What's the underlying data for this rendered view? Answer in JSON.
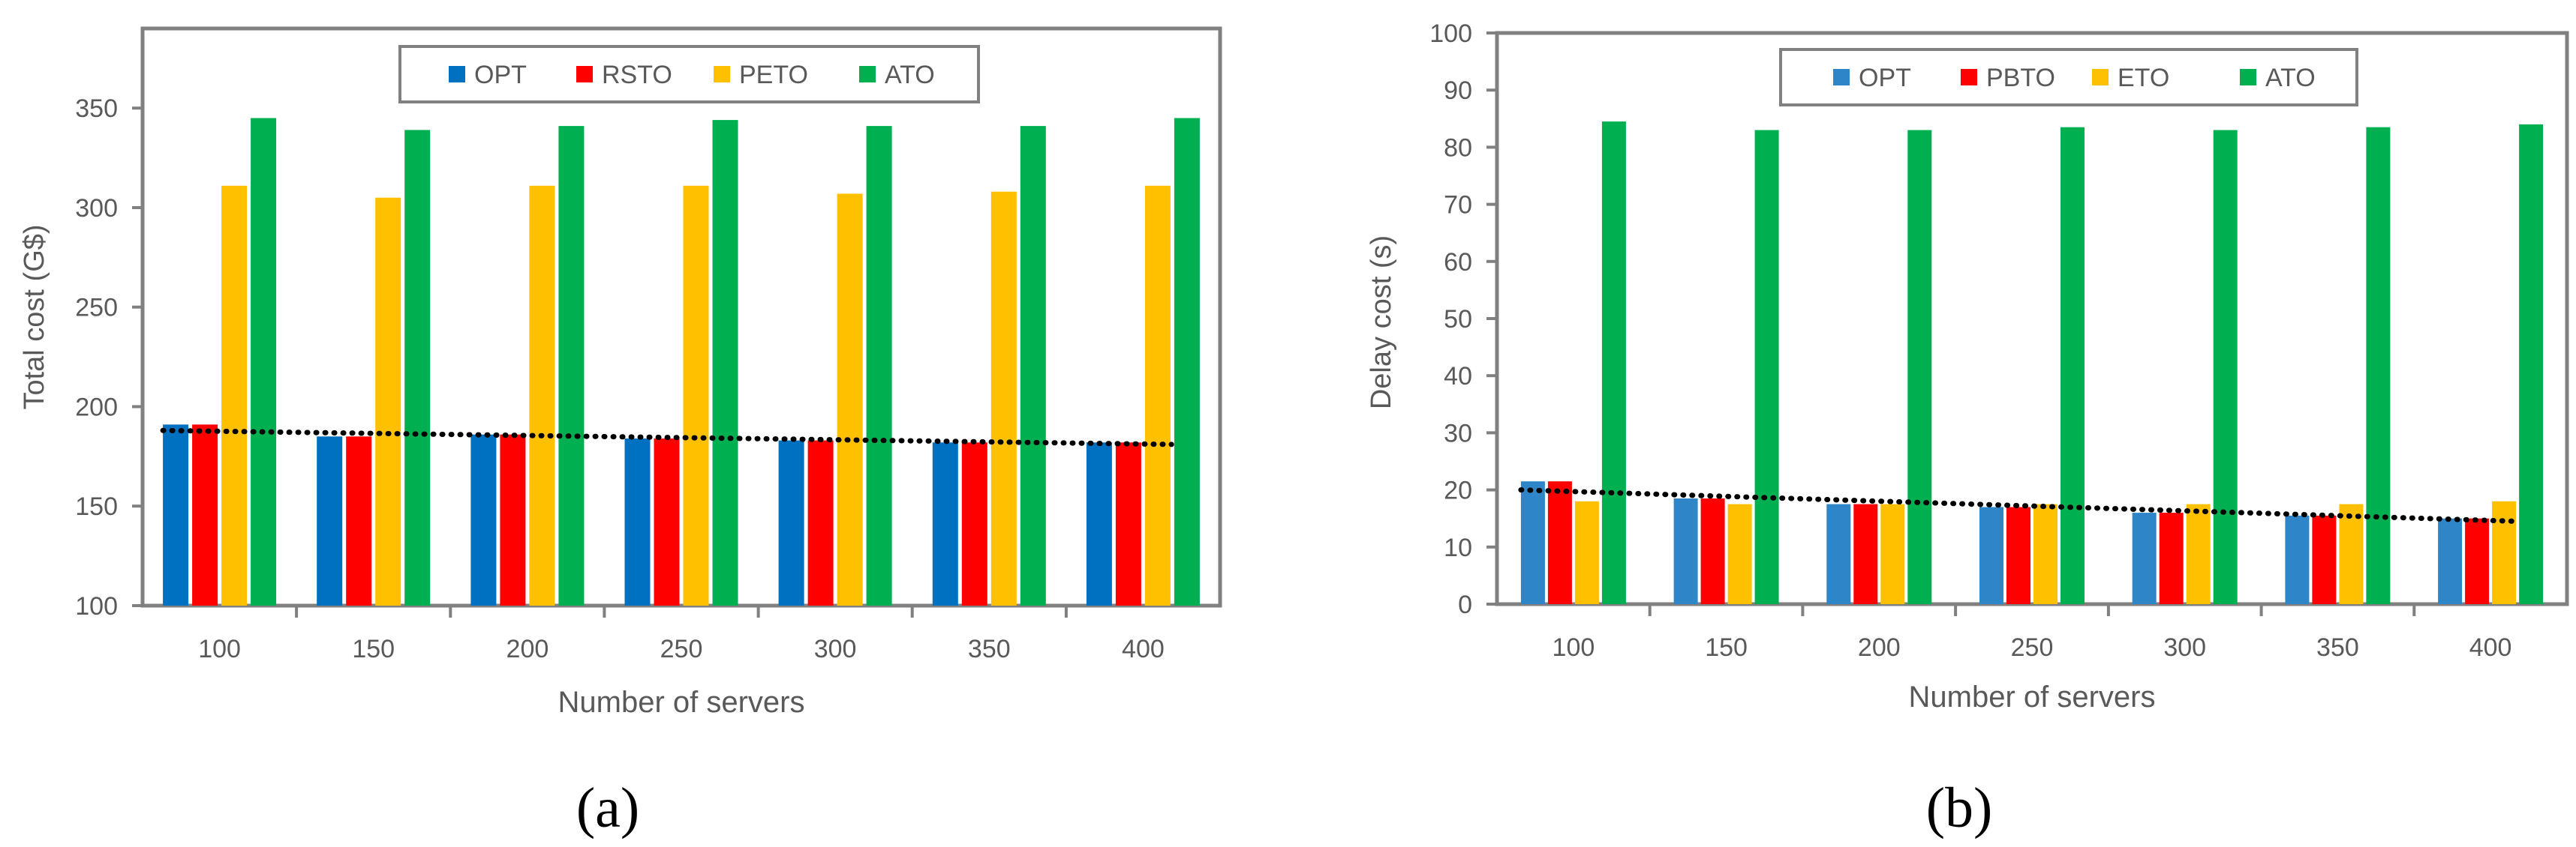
{
  "chart_data": [
    {
      "type": "bar",
      "panel_label": "(a)",
      "title": "",
      "xlabel": "Number of servers",
      "ylabel": "Total cost (G$)",
      "categories": [
        "100",
        "150",
        "200",
        "250",
        "300",
        "350",
        "400"
      ],
      "ylim": [
        100,
        390
      ],
      "yticks": [
        100,
        150,
        200,
        250,
        300,
        350
      ],
      "ytick_labels": [
        "100",
        "150",
        "200",
        "250",
        "300",
        "350"
      ],
      "grid": false,
      "legend_position": "top",
      "series": [
        {
          "name": "OPT",
          "color": "#0070C0",
          "values": [
            191,
            185,
            186,
            184,
            183,
            182,
            182
          ]
        },
        {
          "name": "RSTO",
          "color": "#FF0000",
          "values": [
            191,
            185,
            186,
            184,
            183,
            182,
            182
          ]
        },
        {
          "name": "PETO",
          "color": "#FFC000",
          "values": [
            311,
            305,
            311,
            311,
            307,
            308,
            311
          ]
        },
        {
          "name": "ATO",
          "color": "#00B050",
          "values": [
            345,
            339,
            341,
            344,
            341,
            341,
            345
          ]
        }
      ],
      "trendline": {
        "style": "dotted",
        "color": "#000000",
        "start": 188,
        "end": 181
      }
    },
    {
      "type": "bar",
      "panel_label": "(b)",
      "title": "",
      "xlabel": "Number of servers",
      "ylabel": "Delay cost (s)",
      "categories": [
        "100",
        "150",
        "200",
        "250",
        "300",
        "350",
        "400"
      ],
      "ylim": [
        0,
        100
      ],
      "yticks": [
        0,
        10,
        20,
        30,
        40,
        50,
        60,
        70,
        80,
        90,
        100
      ],
      "ytick_labels": [
        "0",
        "10",
        "20",
        "30",
        "40",
        "50",
        "60",
        "70",
        "80",
        "90",
        "100"
      ],
      "grid": false,
      "legend_position": "top",
      "series": [
        {
          "name": "OPT",
          "color": "#2E86C8",
          "values": [
            21.5,
            18.5,
            17.5,
            17,
            16,
            15.5,
            15
          ]
        },
        {
          "name": "PBTO",
          "color": "#FF0000",
          "values": [
            21.5,
            18.5,
            17.5,
            17,
            16,
            15.5,
            15
          ]
        },
        {
          "name": "ETO",
          "color": "#FFC000",
          "values": [
            18,
            17.5,
            17.5,
            17.5,
            17.5,
            17.5,
            18
          ]
        },
        {
          "name": "ATO",
          "color": "#00B050",
          "values": [
            84.5,
            83,
            83,
            83.5,
            83,
            83.5,
            84
          ]
        }
      ],
      "trendline": {
        "style": "dotted",
        "color": "#000000",
        "start": 20,
        "end": 14.5
      }
    }
  ],
  "colors": {
    "axis": "#808080",
    "text": "#595959",
    "caption": "#000000"
  }
}
